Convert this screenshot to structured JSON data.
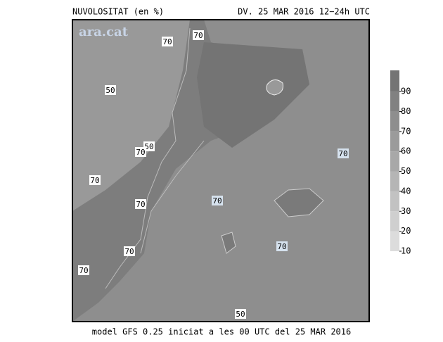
{
  "header": {
    "title": "NUVOLOSITAT (en %)",
    "date": "DV. 25 MAR 2016 12−24h UTC"
  },
  "watermark": "ara.cat",
  "contour_labels": [
    "70",
    "70",
    "50",
    "50",
    "70",
    "70",
    "70",
    "70",
    "70",
    "70",
    "70",
    "70",
    "50"
  ],
  "colorbar": {
    "ticks": [
      10,
      20,
      30,
      40,
      50,
      60,
      70,
      80,
      90
    ]
  },
  "footer": "model GFS 0.25 iniciat a les 00 UTC del 25 MAR 2016"
}
